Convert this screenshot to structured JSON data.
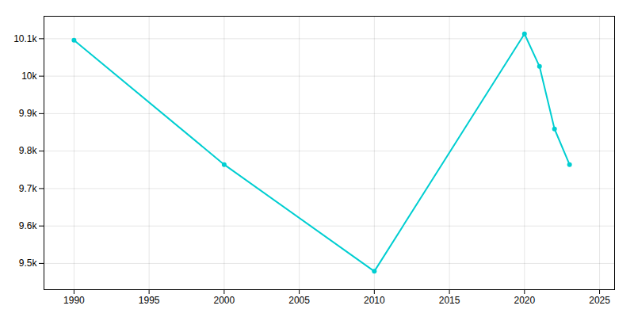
{
  "chart_data": {
    "type": "line",
    "x": [
      1990,
      2000,
      2010,
      2020,
      2021,
      2022,
      2023
    ],
    "values": [
      10096,
      9764,
      9479,
      10113,
      10026,
      9859,
      9764
    ],
    "color": "#00CED1",
    "marker": "circle",
    "xlim": [
      1988,
      2026
    ],
    "xticks": [
      1990,
      1995,
      2000,
      2005,
      2010,
      2015,
      2020,
      2025
    ],
    "ylim": [
      9430,
      10160
    ],
    "yticks": [
      {
        "value": 9500,
        "label": "9.5k"
      },
      {
        "value": 9600,
        "label": "9.6k"
      },
      {
        "value": 9700,
        "label": "9.7k"
      },
      {
        "value": 9800,
        "label": "9.8k"
      },
      {
        "value": 9900,
        "label": "9.9k"
      },
      {
        "value": 10000,
        "label": "10k"
      },
      {
        "value": 10100,
        "label": "10.1k"
      }
    ],
    "grid": true
  }
}
